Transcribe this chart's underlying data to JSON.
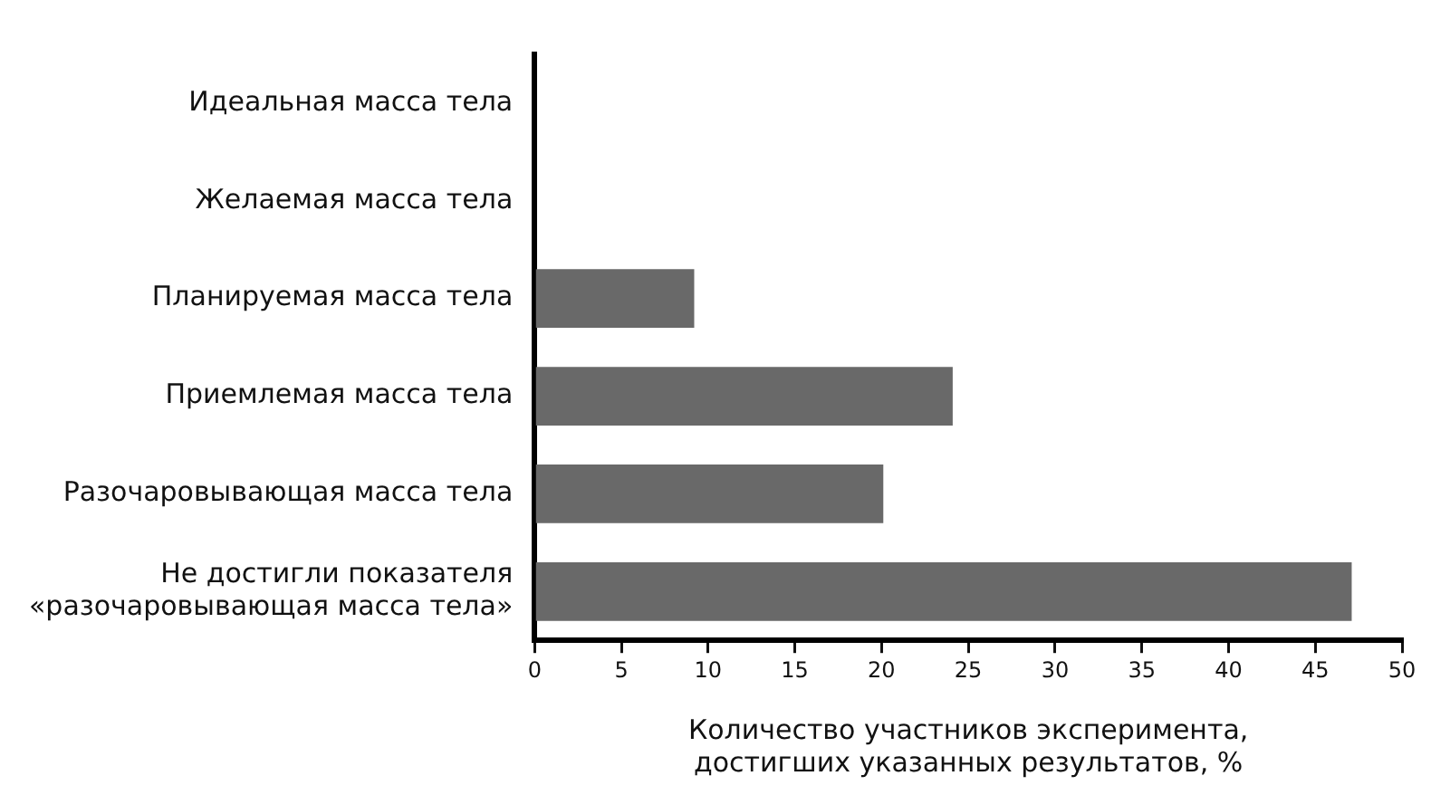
{
  "chart_data": {
    "type": "bar",
    "orientation": "horizontal",
    "categories": [
      "Идеальная масса тела",
      "Желаемая масса тела",
      "Планируемая масса тела",
      "Приемлемая масса тела",
      "Разочаровывающая масса тела",
      "Не достигли показателя\n«разочаровывающая масса тела»"
    ],
    "values": [
      0,
      0,
      9.2,
      24.1,
      20.1,
      47.1
    ],
    "color": "#696969",
    "xlabel": "Количество участников эксперимента,\nдостигших указанных результатов, %",
    "xlim": [
      0,
      50
    ],
    "xticks": [
      0,
      5,
      10,
      15,
      20,
      25,
      30,
      35,
      40,
      45,
      50
    ],
    "grid": false,
    "legend": false
  }
}
